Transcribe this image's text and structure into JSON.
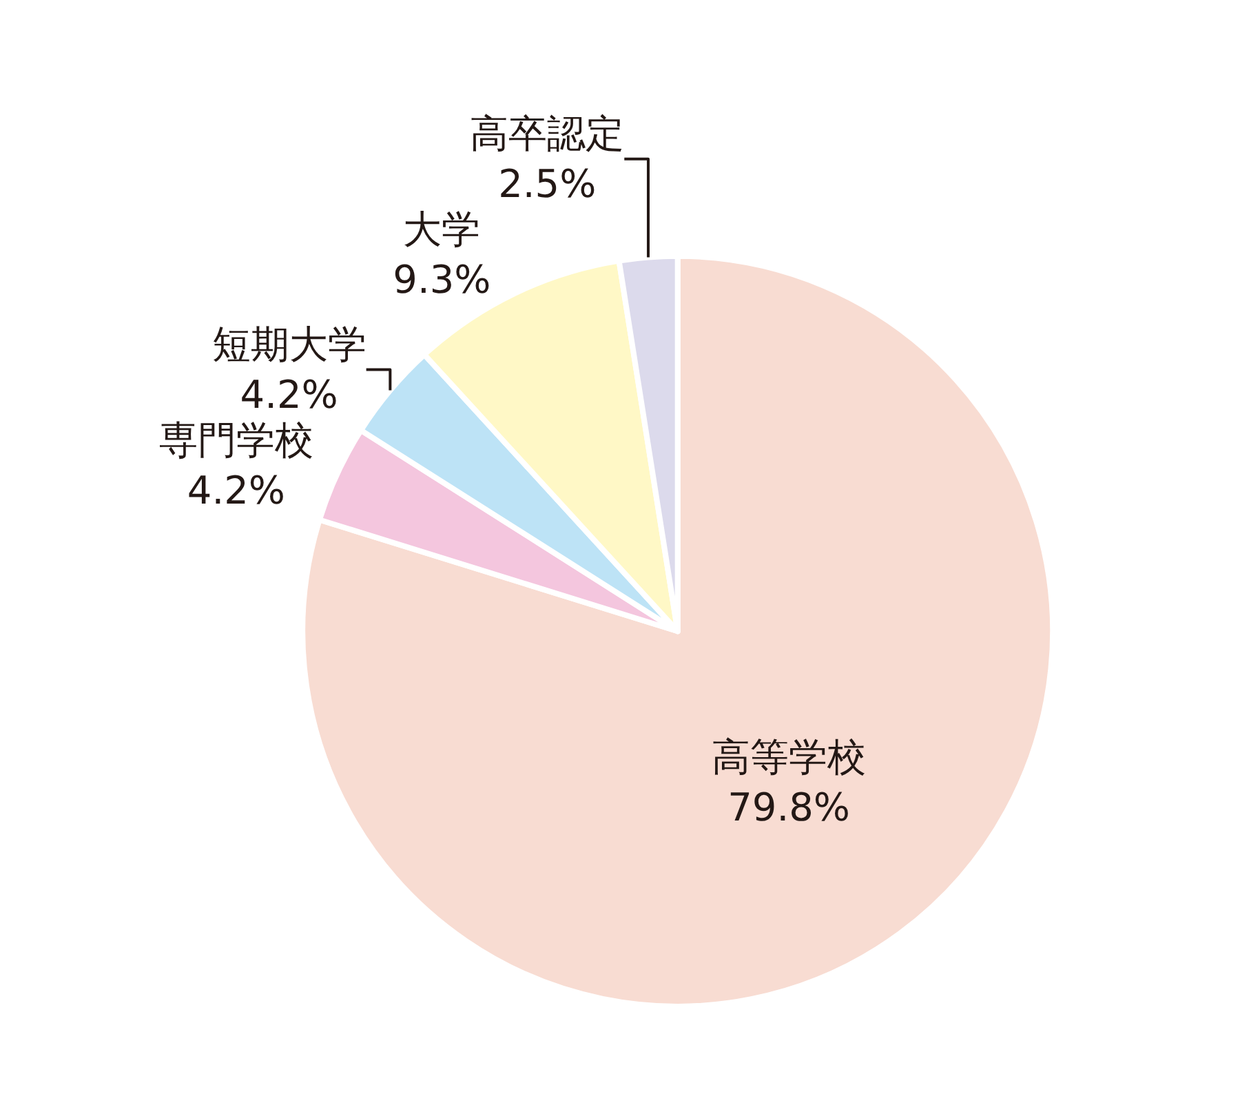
{
  "chart_data": {
    "type": "pie",
    "categories": [
      "高等学校",
      "専門学校",
      "短期大学",
      "大学",
      "高卒認定"
    ],
    "values": [
      79.8,
      4.2,
      4.2,
      9.3,
      2.5
    ],
    "value_labels": [
      "79.8%",
      "4.2%",
      "4.2%",
      "9.3%",
      "2.5%"
    ],
    "colors": [
      "#f8dcd2",
      "#f4c6de",
      "#bde3f6",
      "#fff8c6",
      "#dcdaec"
    ]
  }
}
